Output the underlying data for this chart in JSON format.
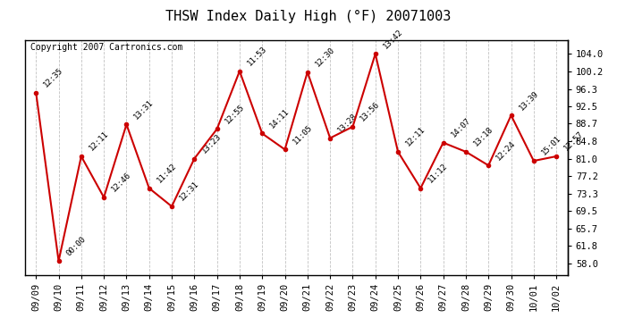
{
  "title": "THSW Index Daily High (°F) 20071003",
  "copyright": "Copyright 2007 Cartronics.com",
  "x_labels": [
    "09/09",
    "09/10",
    "09/11",
    "09/12",
    "09/13",
    "09/14",
    "09/15",
    "09/16",
    "09/17",
    "09/18",
    "09/19",
    "09/20",
    "09/21",
    "09/22",
    "09/23",
    "09/24",
    "09/25",
    "09/26",
    "09/27",
    "09/28",
    "09/29",
    "09/30",
    "10/01",
    "10/02"
  ],
  "y_values": [
    95.5,
    58.5,
    81.5,
    72.5,
    88.5,
    74.5,
    70.5,
    81.0,
    87.5,
    100.2,
    86.5,
    83.0,
    100.0,
    85.5,
    88.0,
    104.0,
    82.5,
    74.5,
    84.5,
    82.5,
    79.5,
    90.5,
    80.5,
    81.5
  ],
  "time_labels": [
    "12:35",
    "00:00",
    "12:11",
    "12:46",
    "13:31",
    "11:42",
    "12:31",
    "13:23",
    "12:55",
    "11:53",
    "14:11",
    "11:05",
    "12:30",
    "13:28",
    "13:56",
    "13:42",
    "12:11",
    "11:12",
    "14:07",
    "13:18",
    "12:24",
    "13:39",
    "15:01",
    "12:57"
  ],
  "y_ticks": [
    58.0,
    61.8,
    65.7,
    69.5,
    73.3,
    77.2,
    81.0,
    84.8,
    88.7,
    92.5,
    96.3,
    100.2,
    104.0
  ],
  "ylim": [
    55.5,
    107.0
  ],
  "line_color": "#cc0000",
  "marker_color": "#cc0000",
  "bg_color": "#ffffff",
  "grid_color": "#bbbbbb",
  "title_fontsize": 11,
  "label_fontsize": 6.5,
  "tick_fontsize": 7.5,
  "copyright_fontsize": 7
}
